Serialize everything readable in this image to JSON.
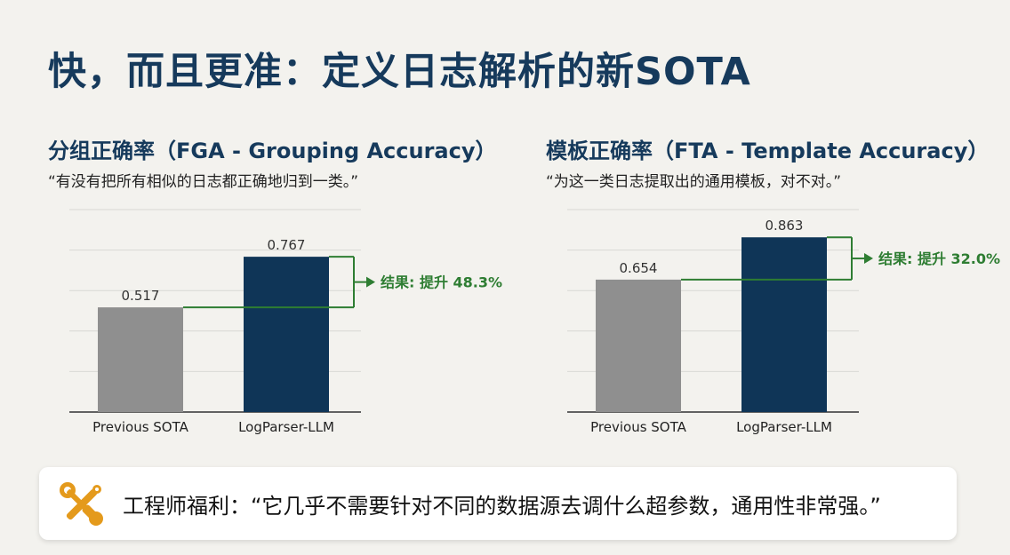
{
  "header": {
    "title": "快，而且更准：定义日志解析的新SOTA"
  },
  "chart_data": [
    {
      "type": "bar",
      "title": "分组正确率（FGA - Grouping Accuracy）",
      "subtitle": "“有没有把所有相似的日志都正确地归到一类。”",
      "categories": [
        "Previous SOTA",
        "LogParser-LLM"
      ],
      "values": [
        0.517,
        0.767
      ],
      "value_labels": [
        "0.517",
        "0.767"
      ],
      "colors": [
        "#8f8f8f",
        "#0f3557"
      ],
      "ylim": [
        0,
        1.0
      ],
      "grid": true,
      "annotation": {
        "text": "结果: 提升 48.3%",
        "color": "#2e7d32"
      }
    },
    {
      "type": "bar",
      "title": "模板正确率（FTA - Template Accuracy）",
      "subtitle": "“为这一类日志提取出的通用模板，对不对。”",
      "categories": [
        "Previous SOTA",
        "LogParser-LLM"
      ],
      "values": [
        0.654,
        0.863
      ],
      "value_labels": [
        "0.654",
        "0.863"
      ],
      "colors": [
        "#8f8f8f",
        "#0f3557"
      ],
      "ylim": [
        0,
        1.0
      ],
      "grid": true,
      "annotation": {
        "text": "结果: 提升 32.0%",
        "color": "#2e7d32"
      }
    }
  ],
  "benefit": {
    "icon": "tools-icon",
    "text": "工程师福利：“它几乎不需要针对不同的数据源去调什么超参数，通用性非常强。”"
  }
}
